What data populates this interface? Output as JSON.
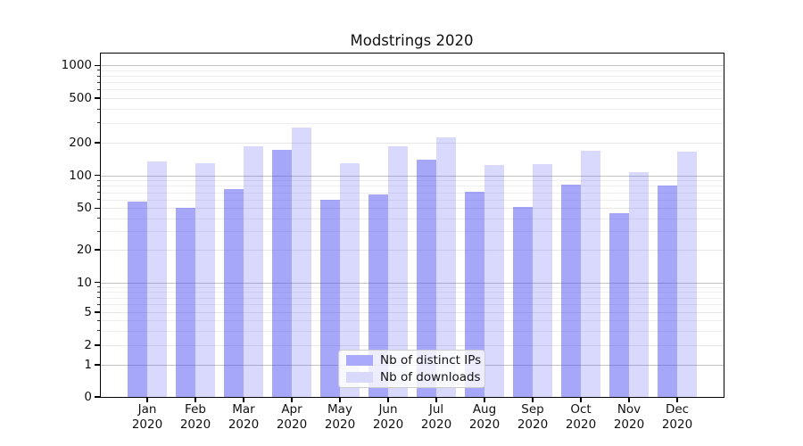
{
  "title": "Modstrings 2020",
  "chart_data": {
    "type": "bar",
    "title": "Modstrings 2020",
    "categories": [
      {
        "month": "Jan",
        "year": "2020"
      },
      {
        "month": "Feb",
        "year": "2020"
      },
      {
        "month": "Mar",
        "year": "2020"
      },
      {
        "month": "Apr",
        "year": "2020"
      },
      {
        "month": "May",
        "year": "2020"
      },
      {
        "month": "Jun",
        "year": "2020"
      },
      {
        "month": "Jul",
        "year": "2020"
      },
      {
        "month": "Aug",
        "year": "2020"
      },
      {
        "month": "Sep",
        "year": "2020"
      },
      {
        "month": "Oct",
        "year": "2020"
      },
      {
        "month": "Nov",
        "year": "2020"
      },
      {
        "month": "Dec",
        "year": "2020"
      }
    ],
    "series": [
      {
        "name": "Nb of distinct IPs",
        "color": "rgba(80,80,245,0.50)",
        "swatch_color": "#aaaafa",
        "values": [
          57,
          50,
          75,
          171,
          60,
          67,
          139,
          71,
          51,
          82,
          45,
          81
        ]
      },
      {
        "name": "Nb of downloads",
        "color": "rgba(80,80,245,0.22)",
        "swatch_color": "#d9d9fc",
        "values": [
          134,
          130,
          185,
          272,
          130,
          186,
          222,
          125,
          127,
          169,
          107,
          166
        ]
      }
    ],
    "yscale": "symlog",
    "y_ticks": [
      0,
      1,
      2,
      5,
      10,
      20,
      50,
      100,
      200,
      500,
      1000
    ],
    "y_minor_ticks": [
      3,
      4,
      6,
      7,
      8,
      9,
      30,
      40,
      60,
      70,
      80,
      90,
      300,
      400,
      600,
      700,
      800,
      900
    ],
    "ylim": [
      0,
      1070
    ],
    "xlabel": "",
    "ylabel": "",
    "grid": true,
    "legend_position": "lower center"
  }
}
